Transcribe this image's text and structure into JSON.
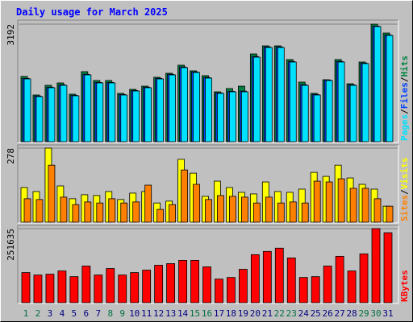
{
  "chart_data": {
    "type": "bar",
    "title": "Daily usage for March 2025",
    "categories": [
      "1",
      "2",
      "3",
      "4",
      "5",
      "6",
      "7",
      "8",
      "9",
      "10",
      "11",
      "12",
      "13",
      "14",
      "15",
      "16",
      "17",
      "18",
      "19",
      "20",
      "21",
      "22",
      "23",
      "24",
      "25",
      "26",
      "27",
      "28",
      "29",
      "30",
      "31"
    ],
    "category_colors": [
      "#007040",
      "#007040",
      "#000080",
      "#000080",
      "#000080",
      "#000080",
      "#000080",
      "#007040",
      "#007040",
      "#000080",
      "#000080",
      "#000080",
      "#000080",
      "#000080",
      "#007040",
      "#007040",
      "#000080",
      "#000080",
      "#000080",
      "#000080",
      "#000080",
      "#007040",
      "#007040",
      "#000080",
      "#000080",
      "#000080",
      "#000080",
      "#000080",
      "#007040",
      "#007040",
      "#000080"
    ],
    "legend_separator": "/",
    "panels": [
      {
        "ylim": [
          0,
          3192
        ],
        "yticks": [
          3192
        ],
        "series": [
          {
            "name": "Hits",
            "color": "#008040",
            "values": [
              1771,
              1268,
              1530,
              1596,
              1290,
              1902,
              1661,
              1661,
              1312,
              1421,
              1508,
              1749,
              1858,
              2077,
              1924,
              1793,
              1355,
              1443,
              1508,
              2383,
              2602,
              2602,
              2230,
              1618,
              1312,
              1683,
              2230,
              1574,
              2164,
              3192,
              2951
            ]
          },
          {
            "name": "Files",
            "color": "#0040ff",
            "values": [
              1720,
              1240,
              1480,
              1545,
              1260,
              1830,
              1610,
              1610,
              1280,
              1390,
              1480,
              1720,
              1830,
              2030,
              1895,
              1745,
              1325,
              1370,
              1375,
              2315,
              2575,
              2575,
              2180,
              1550,
              1285,
              1675,
              2180,
              1545,
              2135,
              3140,
              2900
            ]
          },
          {
            "name": "Pages",
            "color": "#00e0ff",
            "values": [
              1705,
              1224,
              1465,
              1530,
              1246,
              1814,
              1596,
              1596,
              1268,
              1377,
              1465,
              1705,
              1814,
              2011,
              1880,
              1727,
              1312,
              1355,
              1355,
              2295,
              2558,
              2558,
              2164,
              1530,
              1268,
              1661,
              2164,
              1530,
              2120,
              3126,
              2886
            ]
          }
        ]
      },
      {
        "ylim": [
          0,
          278
        ],
        "yticks": [
          278
        ],
        "series": [
          {
            "name": "Visits",
            "color": "#ffff00",
            "values": [
              130,
              115,
              278,
              136,
              88,
              103,
              100,
              115,
              85,
              109,
              115,
              72,
              79,
              236,
              184,
              97,
              154,
              130,
              112,
              106,
              151,
              115,
              112,
              124,
              187,
              172,
              214,
              166,
              142,
              124,
              60
            ]
          },
          {
            "name": "Sites",
            "color": "#ff8000",
            "values": [
              88,
              85,
              214,
              94,
              66,
              76,
              72,
              88,
              72,
              76,
              139,
              48,
              66,
              196,
              142,
              85,
              100,
              97,
              94,
              72,
              94,
              72,
              76,
              72,
              154,
              151,
              163,
              127,
              127,
              88,
              60
            ]
          }
        ]
      },
      {
        "ylim": [
          0,
          251635
        ],
        "yticks": [
          251635
        ],
        "series": [
          {
            "name": "KBytes",
            "color": "#ff0000",
            "values": [
              102305,
              94010,
              96775,
              107835,
              88480,
              124425,
              94010,
              116130,
              94010,
              102305,
              110600,
              127190,
              132720,
              143780,
              143780,
              121660,
              80185,
              85715,
              113365,
              163135,
              174195,
              185255,
              152075,
              85715,
              88480,
              124425,
              157605,
              107835,
              165900,
              251635,
              237790
            ]
          }
        ]
      }
    ]
  }
}
